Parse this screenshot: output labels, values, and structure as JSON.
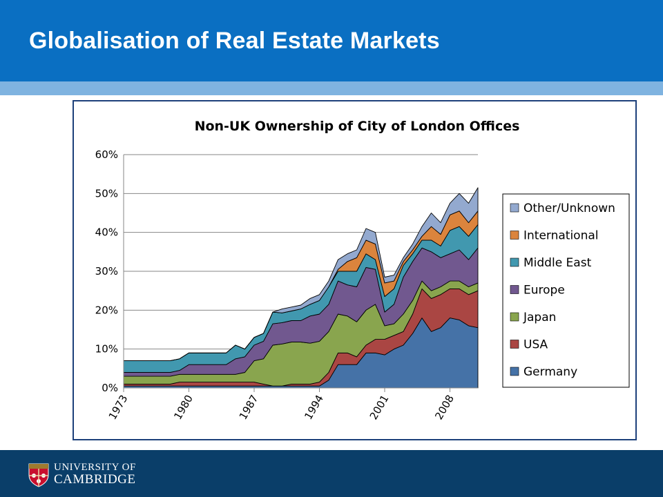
{
  "slide": {
    "title": "Globalisation of Real Estate Markets",
    "university_line1": "UNIVERSITY OF",
    "university_line2": "CAMBRIDGE"
  },
  "colors": {
    "header": "#0a6fc2",
    "stripe": "#7fb3e0",
    "footer": "#0a3e69"
  },
  "chart_data": {
    "type": "area",
    "stacked": true,
    "title": "Non-UK Ownership of City of London Offices",
    "xlabel": "",
    "ylabel": "",
    "x": [
      1973,
      1974,
      1975,
      1976,
      1977,
      1978,
      1979,
      1980,
      1981,
      1982,
      1983,
      1984,
      1985,
      1986,
      1987,
      1988,
      1989,
      1990,
      1991,
      1992,
      1993,
      1994,
      1995,
      1996,
      1997,
      1998,
      1999,
      2000,
      2001,
      2002,
      2003,
      2004,
      2005,
      2006,
      2007,
      2008,
      2009,
      2010,
      2011
    ],
    "xticks": [
      "1973",
      "1980",
      "1987",
      "1994",
      "2001",
      "2008"
    ],
    "xtick_values": [
      1973,
      1980,
      1987,
      1994,
      2001,
      2008
    ],
    "yticks": [
      "0%",
      "10%",
      "20%",
      "30%",
      "40%",
      "50%",
      "60%"
    ],
    "ytick_values": [
      0,
      10,
      20,
      30,
      40,
      50,
      60
    ],
    "ylim": [
      0,
      60
    ],
    "grid": true,
    "legend_position": "right",
    "series": [
      {
        "name": "Germany",
        "color": "#4572a7",
        "values": [
          0.5,
          0.5,
          0.5,
          0.5,
          0.5,
          0.5,
          0.5,
          0.5,
          0.5,
          0.5,
          0.5,
          0.5,
          0.5,
          0.5,
          0.5,
          0.5,
          0.5,
          0.5,
          0.5,
          0.5,
          0.5,
          0.5,
          2,
          6,
          6,
          6,
          9,
          9,
          8.5,
          10,
          11,
          14,
          18,
          14.5,
          15.5,
          18,
          17.5,
          16,
          15.5
        ]
      },
      {
        "name": "USA",
        "color": "#aa4643",
        "values": [
          0.5,
          0.5,
          0.5,
          0.5,
          0.5,
          0.5,
          1,
          1,
          1,
          1,
          1,
          1,
          1,
          1,
          1,
          0.5,
          0,
          0,
          0.5,
          0.5,
          0.5,
          1,
          2,
          3,
          3,
          2,
          2,
          3.5,
          4,
          3.5,
          3.5,
          5,
          7.5,
          8.5,
          8.5,
          7.5,
          8,
          8,
          9.5
        ]
      },
      {
        "name": "Japan",
        "color": "#89a54e",
        "values": [
          2,
          2,
          2,
          2,
          2,
          2,
          2,
          2,
          2,
          2,
          2,
          2,
          2,
          2.5,
          5.5,
          6.5,
          10.5,
          10.8,
          10.8,
          10.8,
          10.5,
          10.5,
          10.5,
          10,
          9.5,
          9,
          9,
          9,
          3.5,
          3,
          4.5,
          3.5,
          2,
          2,
          2,
          2,
          2,
          2,
          2
        ]
      },
      {
        "name": "Europe",
        "color": "#71588f",
        "values": [
          1,
          1,
          1,
          1,
          1,
          1,
          1,
          2.5,
          2.5,
          2.5,
          2.5,
          2.5,
          4,
          4,
          4,
          4.5,
          5.5,
          5.5,
          5.5,
          5.5,
          7,
          7,
          7,
          8.5,
          8,
          9,
          11,
          9,
          3.5,
          5,
          9.5,
          10,
          8.5,
          10,
          7.5,
          7,
          8,
          7,
          9
        ]
      },
      {
        "name": "Middle East",
        "color": "#4198af",
        "values": [
          3,
          3,
          3,
          3,
          3,
          3,
          3,
          3,
          3,
          3,
          3,
          3,
          3.5,
          2,
          2,
          2,
          3,
          2.5,
          2.5,
          3,
          3,
          3.5,
          4.5,
          2.5,
          3.5,
          4,
          3.5,
          2.5,
          4,
          4,
          3,
          2,
          2,
          3,
          3,
          6,
          6,
          6,
          6
        ]
      },
      {
        "name": "International",
        "color": "#db843d",
        "values": [
          0,
          0,
          0,
          0,
          0,
          0,
          0,
          0,
          0,
          0,
          0,
          0,
          0,
          0,
          0,
          0,
          0,
          0,
          0,
          0,
          0,
          0,
          0,
          0.5,
          2.5,
          3.5,
          3.5,
          4,
          3.5,
          2,
          1,
          1,
          1,
          3.5,
          3,
          4,
          4,
          3.5,
          3.5
        ]
      },
      {
        "name": "Other/Unknown",
        "color": "#93a9cf",
        "values": [
          0,
          0,
          0,
          0,
          0,
          0,
          0,
          0,
          0,
          0,
          0,
          0,
          0,
          0,
          0,
          0,
          0,
          1,
          1,
          1,
          1.5,
          1.5,
          1.5,
          2.5,
          2,
          2,
          3,
          3,
          1.5,
          1.5,
          1,
          1.5,
          2.5,
          3.5,
          3,
          3,
          4.5,
          5,
          6
        ]
      }
    ]
  }
}
